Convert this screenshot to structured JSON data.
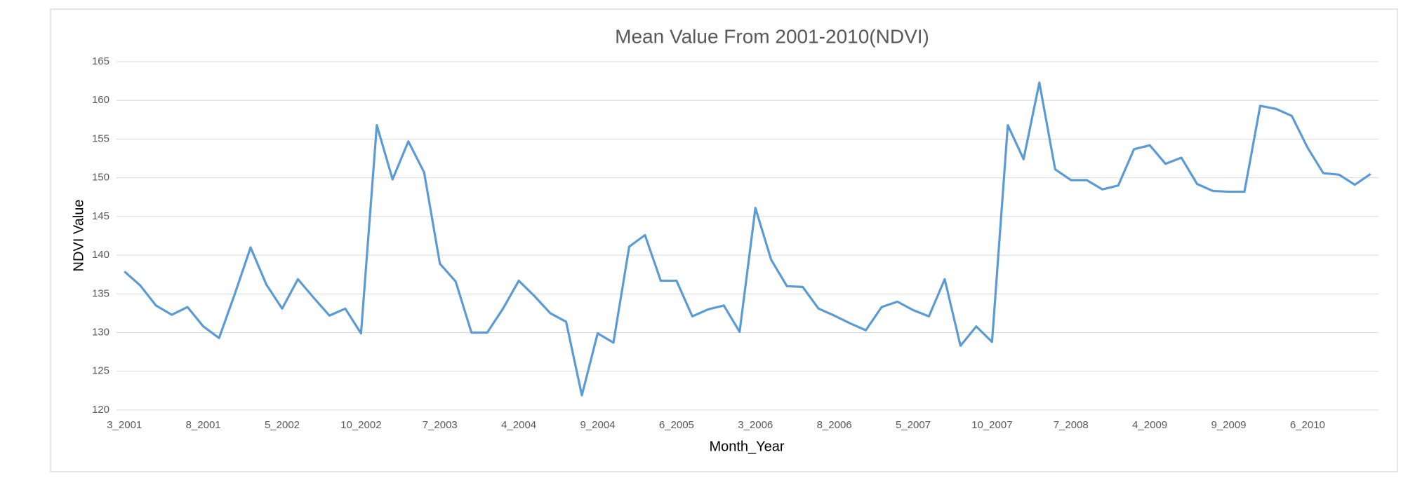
{
  "chart_data": {
    "type": "line",
    "title": "Mean Value From 2001-2010(NDVI)",
    "x_label": "Month_Year",
    "y_label": "NDVI Value",
    "categories": [
      "3_2001",
      null,
      null,
      null,
      null,
      "8_2001",
      null,
      null,
      null,
      null,
      "5_2002",
      null,
      null,
      null,
      null,
      "10_2002",
      null,
      null,
      null,
      null,
      "7_2003",
      null,
      null,
      null,
      null,
      "4_2004",
      null,
      null,
      null,
      null,
      "9_2004",
      null,
      null,
      null,
      null,
      "6_2005",
      null,
      null,
      null,
      null,
      "3_2006",
      null,
      null,
      null,
      null,
      "8_2006",
      null,
      null,
      null,
      null,
      "5_2007",
      null,
      null,
      null,
      null,
      "10_2007",
      null,
      null,
      null,
      null,
      "7_2008",
      null,
      null,
      null,
      null,
      "4_2009",
      null,
      null,
      null,
      null,
      "9_2009",
      null,
      null,
      null,
      null,
      "6_2010",
      null,
      null,
      null,
      null
    ],
    "series": [
      {
        "name": "NDVI",
        "color": "#5b9bd5",
        "values": [
          137.9,
          136.1,
          133.5,
          132.3,
          133.3,
          130.8,
          129.3,
          135,
          141,
          136.2,
          133.1,
          136.9,
          134.5,
          132.2,
          133.1,
          129.9,
          156.8,
          149.8,
          154.7,
          150.7,
          138.9,
          136.6,
          130,
          130,
          133.1,
          136.7,
          134.7,
          132.5,
          131.4,
          121.9,
          129.9,
          128.7,
          141.1,
          142.6,
          136.7,
          136.7,
          132.1,
          133,
          133.5,
          130.1,
          146.1,
          139.4,
          136,
          135.9,
          133.1,
          132.2,
          131.2,
          130.3,
          133.3,
          134,
          132.9,
          132.1,
          136.9,
          128.3,
          130.8,
          128.8,
          156.8,
          152.4,
          162.3,
          151.1,
          149.7,
          149.7,
          148.5,
          149,
          153.7,
          154.2,
          151.8,
          152.6,
          149.2,
          148.3,
          148.2,
          148.2,
          159.3,
          158.9,
          158,
          153.9,
          150.6,
          150.4,
          149.1,
          150.5
        ]
      }
    ],
    "ylim": [
      120,
      165
    ],
    "yticks": [
      120,
      125,
      130,
      135,
      140,
      145,
      150,
      155,
      160,
      165
    ],
    "grid": true
  }
}
